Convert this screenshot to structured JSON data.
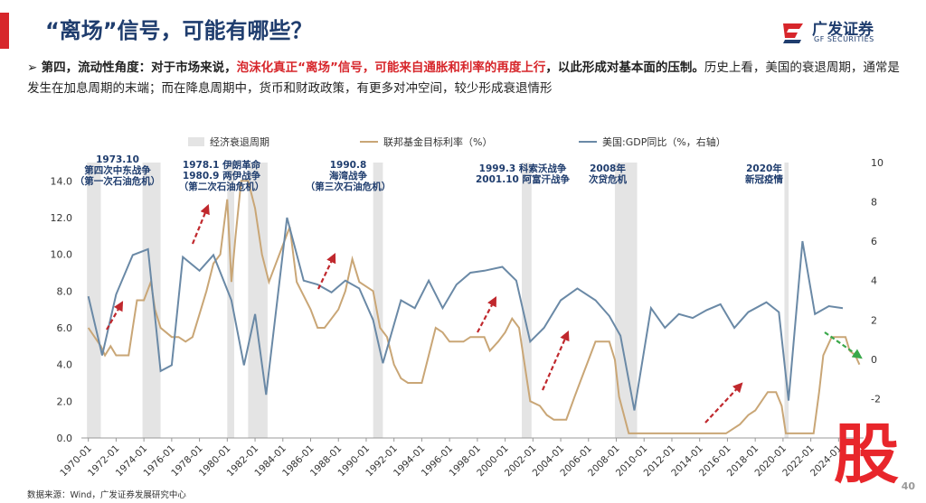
{
  "header": {
    "title": "“离场”信号，可能有哪些？",
    "logo_cn": "广发证券",
    "logo_en": "GF SECURITIES"
  },
  "bullet": [
    "第四，流动性角度：对于市场来说，",
    "泡沫化真正“离场”信号，可能来自通胀和利率的再度上行",
    "，以此形成对基本面的压制。",
    "历史上看，美国的衰退周期，通常是发生在加息周期的末端；而在降息周期中，货币和财政政策，有更多对冲空间，较少形成衰退情形"
  ],
  "chart_data": {
    "type": "line",
    "legend": {
      "recession": "经济衰退周期"
    },
    "recession_color": "#e4e4e4",
    "recessions": [
      [
        1969.9,
        1970.9
      ],
      [
        1973.9,
        1975.2
      ],
      [
        1980.0,
        1980.5
      ],
      [
        1981.5,
        1982.9
      ],
      [
        1990.5,
        1991.2
      ],
      [
        2001.2,
        2001.9
      ],
      [
        2007.9,
        2009.5
      ],
      [
        2020.1,
        2020.4
      ]
    ],
    "series": [
      {
        "name": "联邦基金目标利率（%）",
        "color": "#c9a676",
        "axis": "y",
        "x": [
          1970.0,
          1970.9,
          1971.2,
          1971.6,
          1972.0,
          1972.9,
          1973.2,
          1973.5,
          1974.0,
          1974.5,
          1974.8,
          1975.2,
          1976.0,
          1976.5,
          1977.0,
          1977.5,
          1977.9,
          1978.5,
          1979.0,
          1979.5,
          1980.0,
          1980.3,
          1980.6,
          1981.0,
          1981.5,
          1982.0,
          1982.5,
          1983.0,
          1983.5,
          1984.0,
          1984.5,
          1985.0,
          1985.5,
          1986.0,
          1986.5,
          1987.0,
          1987.5,
          1988.0,
          1988.5,
          1989.0,
          1989.5,
          1990.0,
          1990.5,
          1991.0,
          1991.5,
          1992.0,
          1992.5,
          1993.0,
          1994.0,
          1994.5,
          1995.0,
          1995.5,
          1996.0,
          1997.0,
          1997.5,
          1998.5,
          1998.9,
          1999.5,
          2000.0,
          2000.5,
          2001.0,
          2001.3,
          2001.8,
          2002.5,
          2003.0,
          2003.5,
          2004.4,
          2005.0,
          2005.5,
          2006.0,
          2006.5,
          2007.5,
          2007.9,
          2008.2,
          2008.9,
          2015.9,
          2016.9,
          2017.5,
          2018.0,
          2018.9,
          2019.5,
          2019.9,
          2020.2,
          2022.2,
          2022.6,
          2022.9,
          2023.5,
          2024.5,
          2024.8,
          2025.2,
          2025.5
        ],
        "values": [
          6.0,
          5.0,
          4.5,
          5.0,
          4.5,
          4.5,
          6.0,
          7.5,
          7.5,
          8.5,
          7.0,
          6.0,
          5.5,
          5.5,
          5.25,
          5.5,
          6.5,
          8.0,
          9.5,
          10.0,
          13.0,
          8.5,
          11.0,
          14.0,
          14.0,
          12.5,
          10.0,
          8.5,
          9.5,
          10.5,
          11.5,
          8.5,
          7.75,
          7.0,
          6.0,
          6.0,
          6.5,
          7.0,
          8.0,
          9.75,
          8.5,
          8.25,
          8.0,
          6.0,
          5.5,
          4.0,
          3.25,
          3.0,
          3.0,
          4.5,
          6.0,
          5.75,
          5.25,
          5.25,
          5.5,
          5.5,
          4.75,
          5.25,
          5.75,
          6.5,
          6.0,
          4.5,
          2.0,
          1.75,
          1.25,
          1.0,
          1.0,
          2.25,
          3.25,
          4.25,
          5.25,
          5.25,
          4.25,
          2.25,
          0.25,
          0.25,
          0.75,
          1.25,
          1.5,
          2.5,
          2.5,
          1.75,
          0.25,
          0.25,
          2.5,
          4.5,
          5.5,
          5.5,
          4.75,
          4.5,
          4.0
        ]
      },
      {
        "name": "美国:GDP同比（%，右轴）",
        "color": "#6a89a6",
        "axis": "y2",
        "x": [
          1970.0,
          1971.0,
          1972.0,
          1973.2,
          1974.3,
          1975.2,
          1976.0,
          1976.8,
          1978.0,
          1979.0,
          1980.3,
          1981.2,
          1982.0,
          1982.8,
          1984.3,
          1985.5,
          1986.5,
          1987.5,
          1988.5,
          1989.5,
          1990.5,
          1991.2,
          1992.5,
          1993.5,
          1994.5,
          1995.5,
          1996.5,
          1997.5,
          1998.5,
          1999.8,
          2000.8,
          2001.8,
          2002.8,
          2004.0,
          2005.2,
          2006.5,
          2007.5,
          2008.3,
          2009.3,
          2010.5,
          2011.5,
          2012.5,
          2013.5,
          2014.5,
          2015.5,
          2016.5,
          2017.5,
          2018.8,
          2019.7,
          2020.4,
          2021.4,
          2022.3,
          2023.3,
          2024.3
        ],
        "values": [
          3.2,
          0.2,
          3.3,
          5.3,
          5.6,
          -0.6,
          -0.3,
          5.2,
          4.5,
          5.3,
          3.0,
          -0.3,
          2.3,
          -1.8,
          7.2,
          4.0,
          3.8,
          3.4,
          4.0,
          3.6,
          2.0,
          -0.2,
          3.0,
          2.6,
          4.0,
          2.6,
          3.8,
          4.4,
          4.5,
          4.7,
          4.0,
          0.9,
          1.6,
          3.0,
          3.6,
          3.0,
          2.2,
          1.2,
          -2.6,
          2.6,
          1.6,
          2.3,
          2.1,
          2.5,
          2.8,
          1.6,
          2.4,
          2.9,
          2.4,
          -2.1,
          6.0,
          2.3,
          2.7,
          2.6
        ]
      }
    ],
    "xlim": [
      1969.5,
      2025.8
    ],
    "xticks": [
      {
        "value": 1970,
        "label": "1970-01"
      },
      {
        "value": 1972,
        "label": "1972-01"
      },
      {
        "value": 1974,
        "label": "1974-01"
      },
      {
        "value": 1976,
        "label": "1976-01"
      },
      {
        "value": 1978,
        "label": "1978-01"
      },
      {
        "value": 1980,
        "label": "1980-01"
      },
      {
        "value": 1982,
        "label": "1982-01"
      },
      {
        "value": 1984,
        "label": "1984-01"
      },
      {
        "value": 1986,
        "label": "1986-01"
      },
      {
        "value": 1988,
        "label": "1988-01"
      },
      {
        "value": 1990,
        "label": "1990-01"
      },
      {
        "value": 1992,
        "label": "1992-01"
      },
      {
        "value": 1994,
        "label": "1994-01"
      },
      {
        "value": 1996,
        "label": "1996-01"
      },
      {
        "value": 1998,
        "label": "1998-01"
      },
      {
        "value": 2000,
        "label": "2000-01"
      },
      {
        "value": 2002,
        "label": "2002-01"
      },
      {
        "value": 2004,
        "label": "2004-01"
      },
      {
        "value": 2006,
        "label": "2006-01"
      },
      {
        "value": 2008,
        "label": "2008-01"
      },
      {
        "value": 2010,
        "label": "2010-01"
      },
      {
        "value": 2012,
        "label": "2012-01"
      },
      {
        "value": 2014,
        "label": "2014-01"
      },
      {
        "value": 2016,
        "label": "2016-01"
      },
      {
        "value": 2018,
        "label": "2018-01"
      },
      {
        "value": 2020,
        "label": "2020-01"
      },
      {
        "value": 2022,
        "label": "2022-01"
      },
      {
        "value": 2024,
        "label": "2024-01"
      }
    ],
    "ylim": [
      0,
      15
    ],
    "yticks": [
      {
        "value": 0,
        "label": "0.0"
      },
      {
        "value": 2,
        "label": "2.0"
      },
      {
        "value": 4,
        "label": "4.0"
      },
      {
        "value": 6,
        "label": "6.0"
      },
      {
        "value": 8,
        "label": "8.0"
      },
      {
        "value": 10,
        "label": "10.0"
      },
      {
        "value": 12,
        "label": "12.0"
      },
      {
        "value": 14,
        "label": "14.0"
      }
    ],
    "y2lim": [
      -4,
      10
    ],
    "y2ticks": [
      -2,
      0,
      2,
      4,
      6,
      8,
      10
    ],
    "annotations": [
      [
        "1973.10",
        "第四次中东战争",
        "（第一次石油危机）"
      ],
      [
        "1978.1 伊朗革命",
        "1980.9 两伊战争",
        "（第二次石油危机）"
      ],
      [
        "1990.8",
        "海湾战争",
        "（第三次石油危机）"
      ],
      [
        "1999.3 科索沃战争",
        "2001.10 阿富汗战争"
      ],
      [
        "2008年",
        "次贷危机"
      ],
      [
        "2020年",
        "新冠疫情"
      ]
    ]
  },
  "footer": {
    "source": "数据来源：Wind，广发证券发展研究中心",
    "page": "40",
    "watermark": "股"
  }
}
